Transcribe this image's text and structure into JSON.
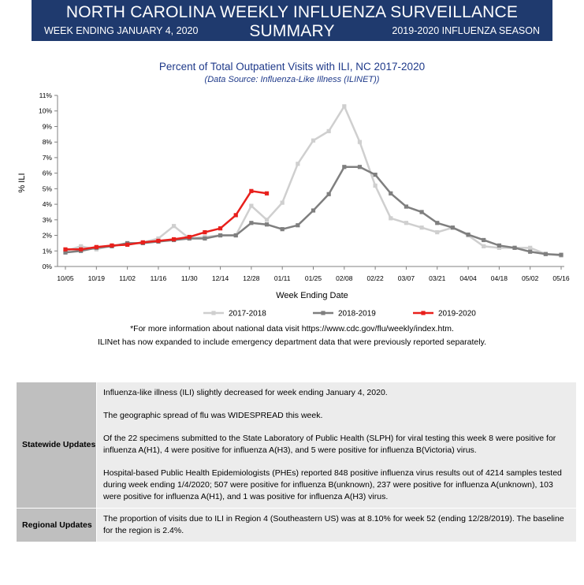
{
  "header": {
    "title": "NORTH CAROLINA WEEKLY INFLUENZA SURVEILLANCE SUMMARY",
    "week_ending": "WEEK ENDING JANUARY 4, 2020",
    "season": "2019-2020 INFLUENZA SEASON"
  },
  "chart_data": {
    "type": "line",
    "title": "Percent of Total Outpatient Visits with ILI, NC 2017-2020",
    "subtitle": "(Data Source: Influenza-Like Illness (ILINET))",
    "xlabel": "Week Ending Date",
    "ylabel": "% ILI",
    "ylim": [
      0,
      11
    ],
    "y_ticks": [
      "0%",
      "1%",
      "2%",
      "3%",
      "4%",
      "5%",
      "6%",
      "7%",
      "8%",
      "9%",
      "10%",
      "11%"
    ],
    "x_ticks": [
      "10/05",
      "10/19",
      "11/02",
      "11/16",
      "11/30",
      "12/14",
      "12/28",
      "01/11",
      "01/25",
      "02/08",
      "02/22",
      "03/07",
      "03/21",
      "04/04",
      "04/18",
      "05/02",
      "05/16"
    ],
    "week_count": 33,
    "legend_position": "bottom",
    "grid": false,
    "series": [
      {
        "name": "2017-2018",
        "color": "#cfcfcf",
        "values": [
          1.0,
          1.3,
          1.1,
          1.35,
          1.4,
          1.55,
          1.8,
          2.6,
          1.8,
          1.9,
          2.0,
          2.0,
          3.9,
          3.0,
          4.1,
          6.6,
          8.1,
          8.7,
          10.3,
          8.0,
          5.2,
          3.1,
          2.8,
          2.5,
          2.2,
          2.5,
          2.0,
          1.3,
          1.2,
          1.2,
          1.2,
          0.8,
          0.7
        ]
      },
      {
        "name": "2018-2019",
        "color": "#7f7f7f",
        "values": [
          0.9,
          1.0,
          1.2,
          1.3,
          1.5,
          1.5,
          1.6,
          1.7,
          1.8,
          1.8,
          2.0,
          2.0,
          2.8,
          2.7,
          2.4,
          2.65,
          3.6,
          4.65,
          6.4,
          6.4,
          5.9,
          4.7,
          3.85,
          3.5,
          2.8,
          2.5,
          2.05,
          1.7,
          1.35,
          1.2,
          0.95,
          0.8,
          0.75
        ]
      },
      {
        "name": "2019-2020",
        "color": "#e8201c",
        "values": [
          1.1,
          1.1,
          1.25,
          1.35,
          1.4,
          1.55,
          1.65,
          1.75,
          1.9,
          2.2,
          2.45,
          3.3,
          4.85,
          4.7
        ]
      }
    ]
  },
  "notes": {
    "line1": "*For more information about national data visit https://www.cdc.gov/flu/weekly/index.htm.",
    "line2": "ILINet has now expanded to include emergency department data that were previously reported separately."
  },
  "updates": {
    "statewide_label": "Statewide Updates",
    "statewide_paragraphs": [
      "Influenza-like illness (ILI) slightly decreased for week ending January 4, 2020.",
      "The geographic spread of flu was WIDESPREAD this week.",
      "Of the 22 specimens submitted to the State Laboratory of Public Health (SLPH) for viral testing this week 8 were positive for influenza A(H1), 4 were positive for influenza A(H3), and 5 were positive for influenza B(Victoria) virus.",
      "Hospital-based Public Health Epidemiologists (PHEs) reported 848 positive influenza virus results out of 4214 samples tested during week ending 1/4/2020; 507 were positive for influenza B(unknown), 237 were positive for influenza A(unknown), 103 were positive for influenza A(H1), and 1 was positive for influenza A(H3) virus."
    ],
    "regional_label": "Regional Updates",
    "regional_text": "The proportion of visits due to ILI in Region 4 (Southeastern US) was at 8.10% for week 52 (ending 12/28/2019). The baseline for the region is 2.4%."
  }
}
